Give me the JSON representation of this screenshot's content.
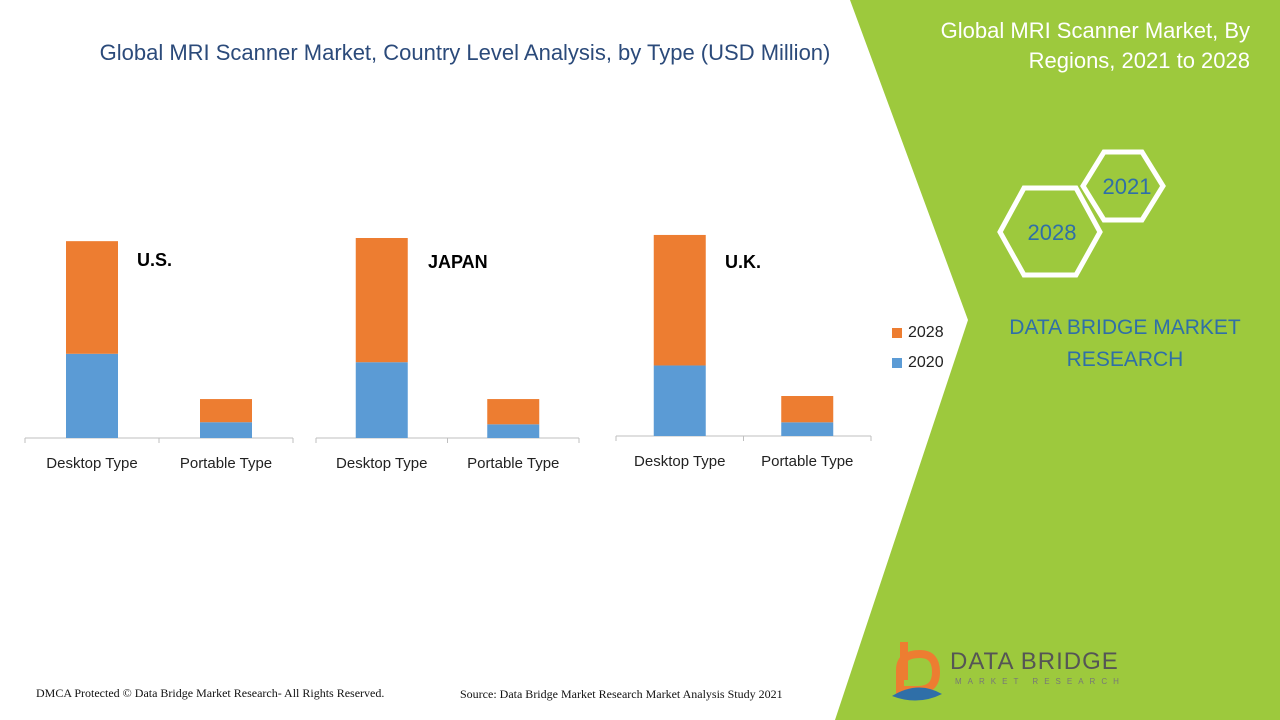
{
  "title": "Global MRI Scanner Market, Country Level Analysis, by Type (USD Million)",
  "side_panel": {
    "title_line1": "Global MRI Scanner Market, By",
    "title_line2": "Regions, 2021 to 2028",
    "hex_years": [
      "2021",
      "2028"
    ],
    "brand_line1": "DATA BRIDGE MARKET",
    "brand_line2": "RESEARCH",
    "colors": {
      "panel": "#9dc93d",
      "hex_stroke": "#ffffff",
      "brand_text": "#2f6fa8"
    }
  },
  "chart_data": [
    {
      "type": "bar",
      "stacked": true,
      "title": "U.S.",
      "categories": [
        "Desktop Type",
        "Portable Type"
      ],
      "series": [
        {
          "name": "2020",
          "values": [
            80,
            15
          ],
          "color": "#5b9bd5"
        },
        {
          "name": "2028",
          "values": [
            107,
            22
          ],
          "color": "#ed7d31"
        }
      ],
      "ylim": [
        0,
        190
      ]
    },
    {
      "type": "bar",
      "stacked": true,
      "title": "JAPAN",
      "categories": [
        "Desktop Type",
        "Portable Type"
      ],
      "series": [
        {
          "name": "2020",
          "values": [
            72,
            13
          ],
          "color": "#5b9bd5"
        },
        {
          "name": "2028",
          "values": [
            118,
            24
          ],
          "color": "#ed7d31"
        }
      ],
      "ylim": [
        0,
        190
      ]
    },
    {
      "type": "bar",
      "stacked": true,
      "title": "U.K.",
      "categories": [
        "Desktop Type",
        "Portable Type"
      ],
      "series": [
        {
          "name": "2020",
          "values": [
            67,
            13
          ],
          "color": "#5b9bd5"
        },
        {
          "name": "2028",
          "values": [
            124,
            25
          ],
          "color": "#ed7d31"
        }
      ],
      "ylim": [
        0,
        190
      ]
    }
  ],
  "legend": [
    {
      "label": "2028",
      "color": "#ed7d31"
    },
    {
      "label": "2020",
      "color": "#5b9bd5"
    }
  ],
  "footer": {
    "copyright": "DMCA Protected © Data Bridge Market Research- All Rights Reserved.",
    "source": "Source: Data Bridge Market Research Market Analysis Study 2021"
  },
  "logo": {
    "name": "DATA BRIDGE",
    "tagline": "MARKET RESEARCH"
  }
}
